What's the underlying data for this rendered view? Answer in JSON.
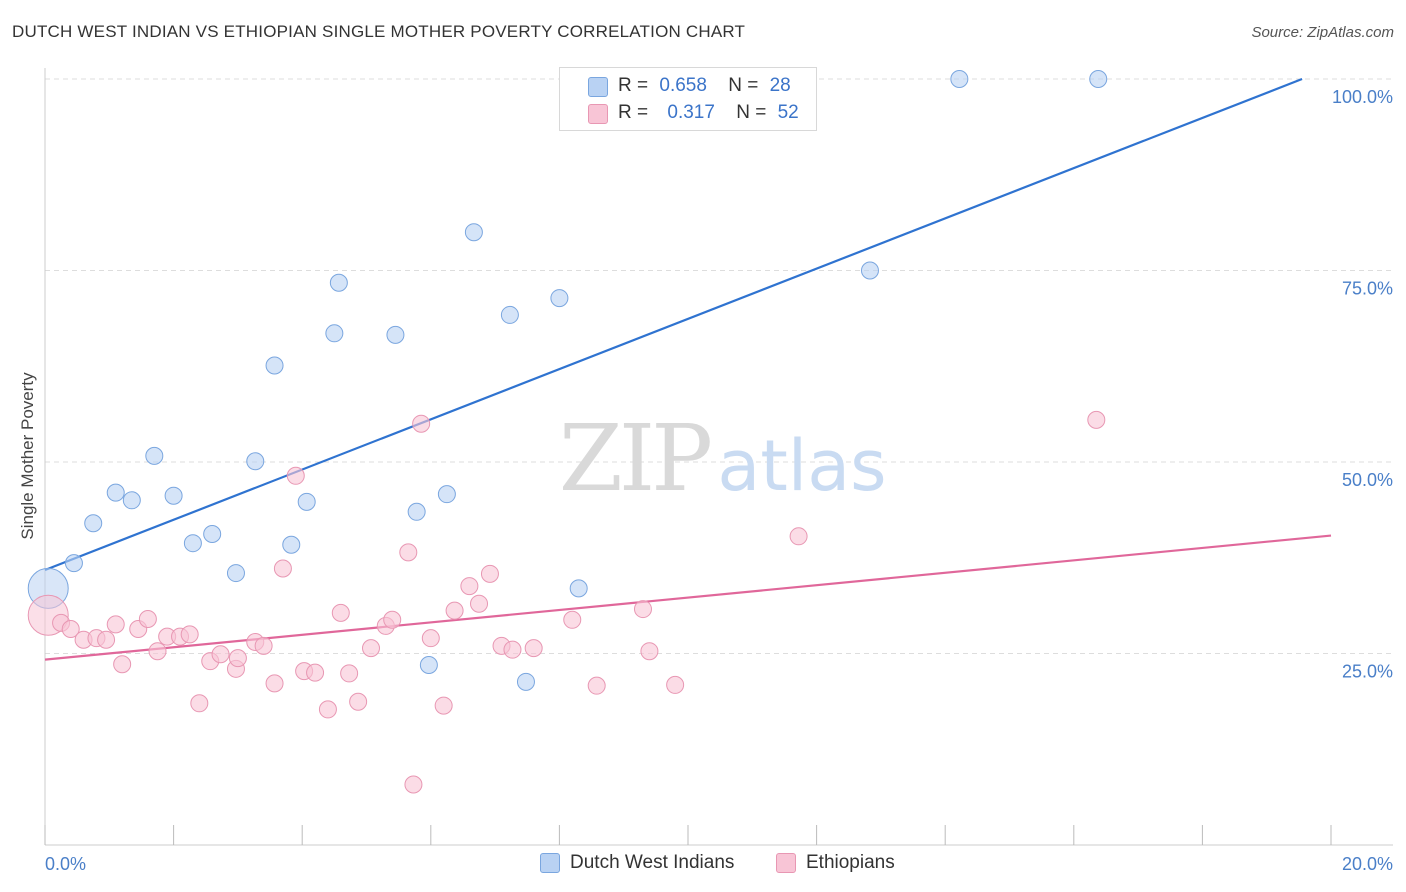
{
  "title": "DUTCH WEST INDIAN VS ETHIOPIAN SINGLE MOTHER POVERTY CORRELATION CHART",
  "source": "Source: ZipAtlas.com",
  "watermark": {
    "zip": "ZIP",
    "atlas": "atlas"
  },
  "colors": {
    "blue_fill": "#b9d2f3",
    "blue_stroke": "#7aa6df",
    "blue_line": "#2f73d0",
    "pink_fill": "#f8c5d6",
    "pink_stroke": "#e897b3",
    "pink_line": "#e0679a",
    "tick_text": "#4a7fc8",
    "grid": "#dddddd"
  },
  "legend": {
    "rows": [
      {
        "r_label": "R =",
        "r_value": "0.658",
        "n_label": "N =",
        "n_value": "28"
      },
      {
        "r_label": "R =",
        "r_value": "0.317",
        "n_label": "N =",
        "n_value": "52"
      }
    ]
  },
  "bottom_legend": {
    "series1": "Dutch West Indians",
    "series2": "Ethiopians"
  },
  "chart_data": {
    "type": "scatter",
    "xlabel": "",
    "ylabel": "Single Mother Poverty",
    "xlim": [
      0,
      20
    ],
    "ylim": [
      0,
      100
    ],
    "x_tick_labels": [
      "0.0%",
      "20.0%"
    ],
    "y_tick_labels": [
      "25.0%",
      "50.0%",
      "75.0%",
      "100.0%"
    ],
    "y_tick_values": [
      25,
      50,
      75,
      100
    ],
    "grid": true,
    "series": [
      {
        "name": "Dutch West Indians",
        "trend": {
          "x": [
            0,
            19.55
          ],
          "y": [
            35.9,
            100
          ]
        },
        "points": [
          {
            "x": 0.05,
            "y": 33.5,
            "big": true
          },
          {
            "x": 0.45,
            "y": 36.8
          },
          {
            "x": 0.75,
            "y": 42.0
          },
          {
            "x": 1.1,
            "y": 46.0
          },
          {
            "x": 1.35,
            "y": 45.0
          },
          {
            "x": 1.7,
            "y": 50.8
          },
          {
            "x": 2.0,
            "y": 45.6
          },
          {
            "x": 2.3,
            "y": 39.4
          },
          {
            "x": 2.6,
            "y": 40.6
          },
          {
            "x": 2.97,
            "y": 35.5
          },
          {
            "x": 3.27,
            "y": 50.1
          },
          {
            "x": 3.57,
            "y": 62.6
          },
          {
            "x": 3.83,
            "y": 39.2
          },
          {
            "x": 4.07,
            "y": 44.8
          },
          {
            "x": 4.57,
            "y": 73.4
          },
          {
            "x": 4.5,
            "y": 66.8
          },
          {
            "x": 5.45,
            "y": 66.6
          },
          {
            "x": 5.78,
            "y": 43.5
          },
          {
            "x": 6.25,
            "y": 45.8
          },
          {
            "x": 5.97,
            "y": 23.5
          },
          {
            "x": 6.67,
            "y": 80.0
          },
          {
            "x": 7.23,
            "y": 69.2
          },
          {
            "x": 7.48,
            "y": 21.3
          },
          {
            "x": 8.0,
            "y": 71.4
          },
          {
            "x": 8.3,
            "y": 33.5
          },
          {
            "x": 12.83,
            "y": 75.0
          },
          {
            "x": 14.22,
            "y": 100.0
          },
          {
            "x": 16.38,
            "y": 100.0
          }
        ]
      },
      {
        "name": "Ethiopians",
        "trend": {
          "x": [
            0,
            20
          ],
          "y": [
            24.2,
            40.4
          ]
        },
        "points": [
          {
            "x": 0.05,
            "y": 30.0,
            "big": true
          },
          {
            "x": 0.25,
            "y": 29.0
          },
          {
            "x": 0.4,
            "y": 28.2
          },
          {
            "x": 0.6,
            "y": 26.8
          },
          {
            "x": 0.8,
            "y": 27.0
          },
          {
            "x": 0.95,
            "y": 26.8
          },
          {
            "x": 1.1,
            "y": 28.8
          },
          {
            "x": 1.2,
            "y": 23.6
          },
          {
            "x": 1.45,
            "y": 28.2
          },
          {
            "x": 1.6,
            "y": 29.5
          },
          {
            "x": 1.75,
            "y": 25.3
          },
          {
            "x": 1.9,
            "y": 27.2
          },
          {
            "x": 2.1,
            "y": 27.2
          },
          {
            "x": 2.25,
            "y": 27.5
          },
          {
            "x": 2.4,
            "y": 18.5
          },
          {
            "x": 2.57,
            "y": 24.0
          },
          {
            "x": 2.73,
            "y": 24.9
          },
          {
            "x": 2.97,
            "y": 23.0
          },
          {
            "x": 3.0,
            "y": 24.4
          },
          {
            "x": 3.27,
            "y": 26.5
          },
          {
            "x": 3.4,
            "y": 26.0
          },
          {
            "x": 3.57,
            "y": 21.1
          },
          {
            "x": 3.7,
            "y": 36.1
          },
          {
            "x": 3.9,
            "y": 48.2
          },
          {
            "x": 4.03,
            "y": 22.7
          },
          {
            "x": 4.2,
            "y": 22.5
          },
          {
            "x": 4.4,
            "y": 17.7
          },
          {
            "x": 4.6,
            "y": 30.3
          },
          {
            "x": 4.73,
            "y": 22.4
          },
          {
            "x": 4.87,
            "y": 18.7
          },
          {
            "x": 5.07,
            "y": 25.7
          },
          {
            "x": 5.3,
            "y": 28.6
          },
          {
            "x": 5.4,
            "y": 29.4
          },
          {
            "x": 5.65,
            "y": 38.2
          },
          {
            "x": 5.73,
            "y": 7.9
          },
          {
            "x": 5.85,
            "y": 55.0
          },
          {
            "x": 6.0,
            "y": 27.0
          },
          {
            "x": 6.2,
            "y": 18.2
          },
          {
            "x": 6.37,
            "y": 30.6
          },
          {
            "x": 6.6,
            "y": 33.8
          },
          {
            "x": 6.75,
            "y": 31.5
          },
          {
            "x": 6.92,
            "y": 35.4
          },
          {
            "x": 7.1,
            "y": 26.0
          },
          {
            "x": 7.27,
            "y": 25.5
          },
          {
            "x": 7.6,
            "y": 25.7
          },
          {
            "x": 8.2,
            "y": 29.4
          },
          {
            "x": 8.58,
            "y": 20.8
          },
          {
            "x": 9.3,
            "y": 30.8
          },
          {
            "x": 9.4,
            "y": 25.3
          },
          {
            "x": 9.8,
            "y": 20.9
          },
          {
            "x": 11.72,
            "y": 40.3
          },
          {
            "x": 16.35,
            "y": 55.5
          }
        ]
      }
    ]
  }
}
